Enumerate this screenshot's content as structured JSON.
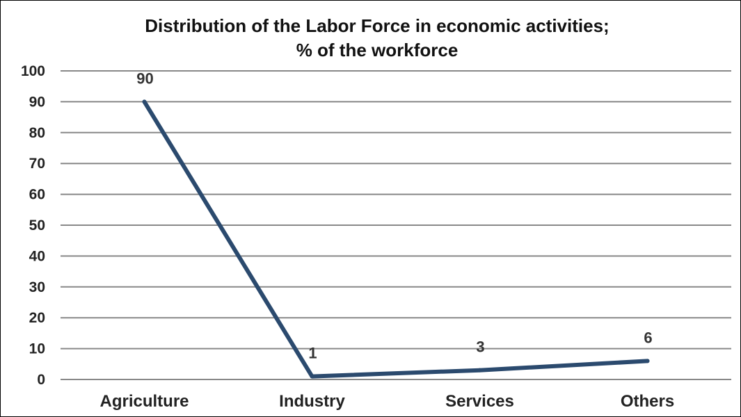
{
  "chart_data": {
    "type": "line",
    "title": "Distribution of the Labor Force in economic activities;",
    "subtitle": "% of the workforce",
    "categories": [
      "Agriculture",
      "Industry",
      "Services",
      "Others"
    ],
    "series": [
      {
        "values": [
          90,
          1,
          3,
          6
        ],
        "data_labels": [
          "90",
          "1",
          "3",
          "6"
        ]
      }
    ],
    "ylim": [
      0,
      100
    ],
    "yticks": [
      0,
      10,
      20,
      30,
      40,
      50,
      60,
      70,
      80,
      90,
      100
    ],
    "grid": true,
    "legend": "none",
    "colors": {
      "line": "#2b4a6e",
      "grid": "#888888"
    }
  }
}
